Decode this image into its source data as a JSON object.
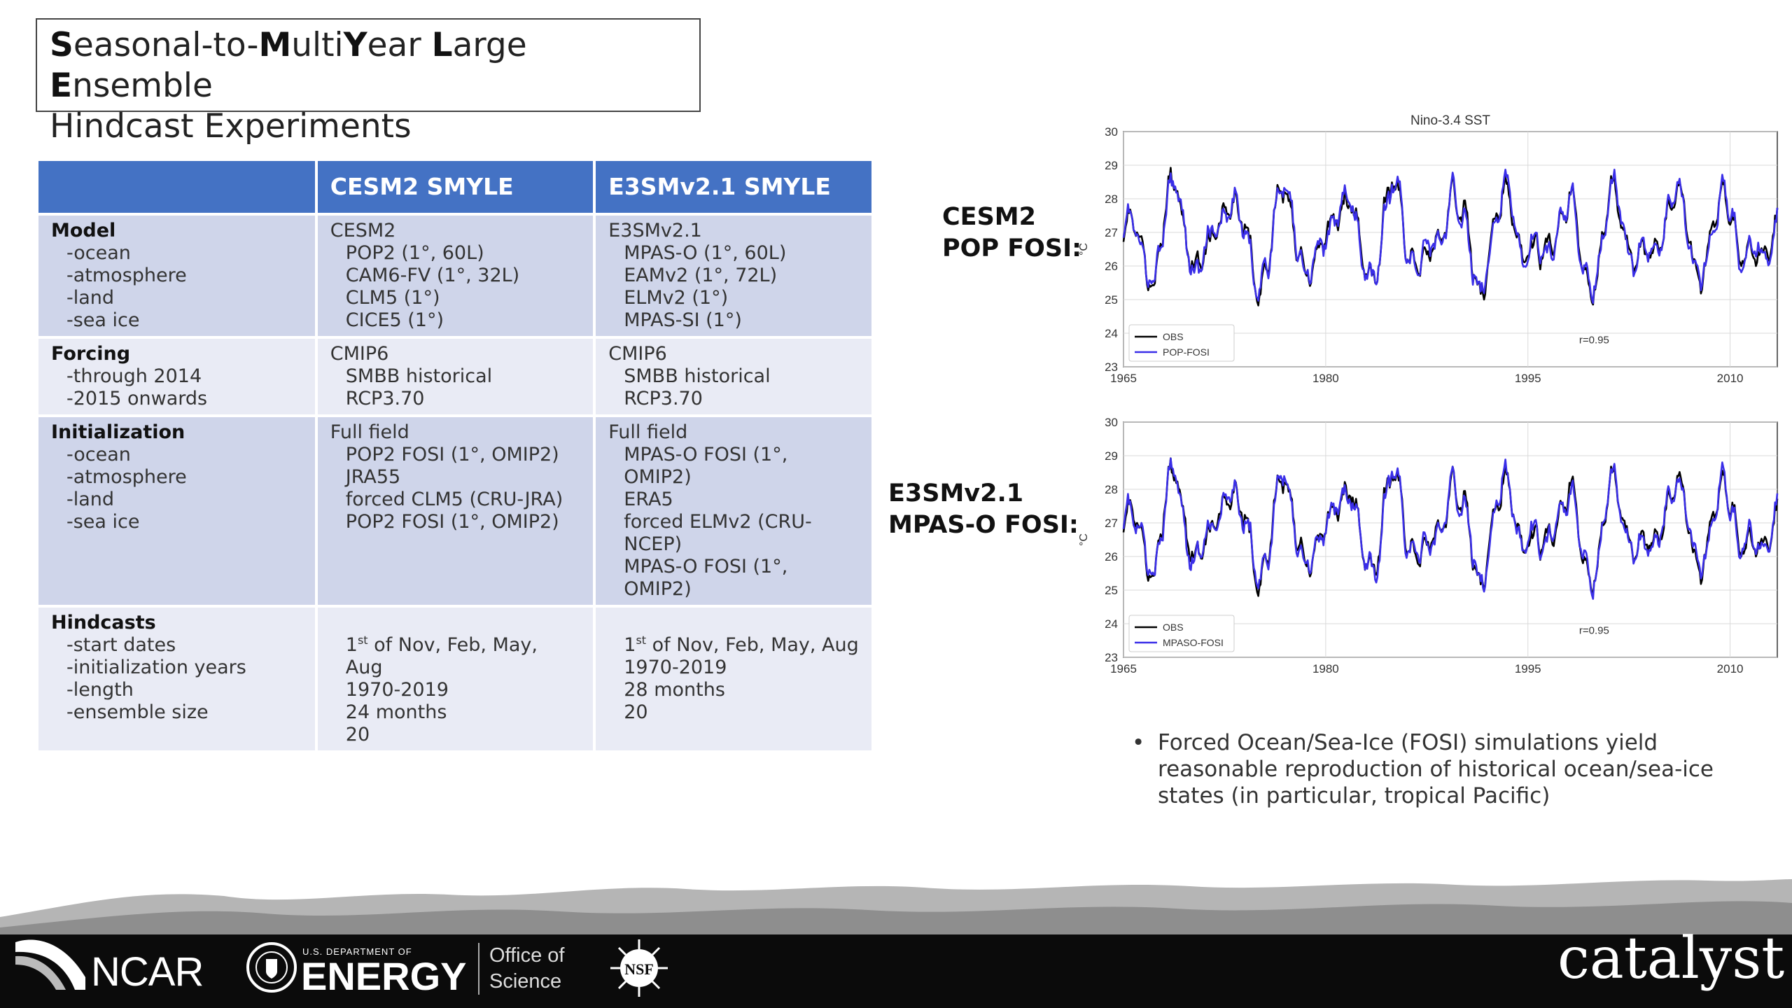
{
  "title": {
    "line1": [
      {
        "b": "S",
        "t": "easonal-to-"
      },
      {
        "b": "M",
        "t": "ulti"
      },
      {
        "b": "Y",
        "t": "ear "
      },
      {
        "b": "L",
        "t": "arge "
      },
      {
        "b": "E",
        "t": "nsemble"
      }
    ],
    "line2": "Hindcast Experiments"
  },
  "table": {
    "headers": [
      "",
      "CESM2 SMYLE",
      "E3SMv2.1 SMYLE"
    ],
    "rows": [
      {
        "style": "dark",
        "c0": [
          "Model",
          "-ocean",
          "-atmosphere",
          "-land",
          "-sea ice"
        ],
        "c1": [
          "CESM2",
          "POP2 (1°, 60L)",
          "CAM6-FV (1°, 32L)",
          "CLM5 (1°)",
          "CICE5 (1°)"
        ],
        "c2": [
          "E3SMv2.1",
          "MPAS-O (1°, 60L)",
          "EAMv2 (1°, 72L)",
          "ELMv2 (1°)",
          "MPAS-SI (1°)"
        ]
      },
      {
        "style": "light",
        "c0": [
          "Forcing",
          "-through 2014",
          "-2015 onwards"
        ],
        "c1": [
          "CMIP6",
          "SMBB historical",
          "RCP3.70"
        ],
        "c2": [
          "CMIP6",
          "SMBB historical",
          "RCP3.70"
        ]
      },
      {
        "style": "dark",
        "c0": [
          "Initialization",
          "-ocean",
          "-atmosphere",
          "-land",
          "-sea ice"
        ],
        "c1": [
          "Full field",
          "POP2 FOSI (1°, OMIP2)",
          "JRA55",
          "forced CLM5 (CRU-JRA)",
          "POP2 FOSI (1°, OMIP2)"
        ],
        "c2": [
          "Full field",
          "MPAS-O FOSI (1°, OMIP2)",
          "ERA5",
          "forced ELMv2 (CRU-NCEP)",
          "MPAS-O FOSI (1°, OMIP2)"
        ]
      },
      {
        "style": "light",
        "tall": true,
        "c0": [
          "Hindcasts",
          "-start dates",
          "-initialization years",
          "-length",
          "-ensemble size"
        ],
        "c1": [
          "",
          "1st of Nov, Feb, May, Aug",
          "1970-2019",
          "24 months",
          "20"
        ],
        "c2": [
          "",
          "1st of Nov, Feb, May, Aug",
          "1970-2019",
          "28 months",
          "20"
        ]
      }
    ]
  },
  "labels": {
    "cesm": [
      "CESM2",
      "POP FOSI:"
    ],
    "e3sm": [
      "E3SMv2.1",
      "MPAS-O FOSI:"
    ]
  },
  "chart_data": [
    {
      "type": "line",
      "title": "Nino-3.4 SST",
      "ylabel": "°C",
      "xlim": [
        1965,
        2013.5
      ],
      "ylim": [
        23,
        30
      ],
      "xticks": [
        1965,
        1980,
        1995,
        2010
      ],
      "yticks": [
        23,
        24,
        25,
        26,
        27,
        28,
        29,
        30
      ],
      "grid": true,
      "legend": "lower-left",
      "annotation": "r=0.95",
      "series": [
        {
          "name": "OBS",
          "color": "#000000",
          "seed": 11
        },
        {
          "name": "POP-FOSI",
          "color": "#3a2ee8",
          "seed": 23
        }
      ]
    },
    {
      "type": "line",
      "title": "",
      "ylabel": "°C",
      "xlim": [
        1965,
        2013.5
      ],
      "ylim": [
        23,
        30
      ],
      "xticks": [
        1965,
        1980,
        1995,
        2010
      ],
      "yticks": [
        23,
        24,
        25,
        26,
        27,
        28,
        29,
        30
      ],
      "grid": true,
      "legend": "lower-left",
      "annotation": "r=0.95",
      "series": [
        {
          "name": "OBS",
          "color": "#000000",
          "seed": 11
        },
        {
          "name": "MPASO-FOSI",
          "color": "#3a2ee8",
          "seed": 37
        }
      ]
    }
  ],
  "bullet": "Forced Ocean/Sea-Ice (FOSI) simulations yield reasonable reproduction of historical ocean/sea-ice states (in particular, tropical Pacific)",
  "footer": {
    "ncar": "NCAR",
    "doe_top": "U.S. DEPARTMENT OF",
    "doe_main": "ENERGY",
    "office": [
      "Office of",
      "Science"
    ],
    "nsf": "NSF",
    "catalyst": "catalyst"
  }
}
